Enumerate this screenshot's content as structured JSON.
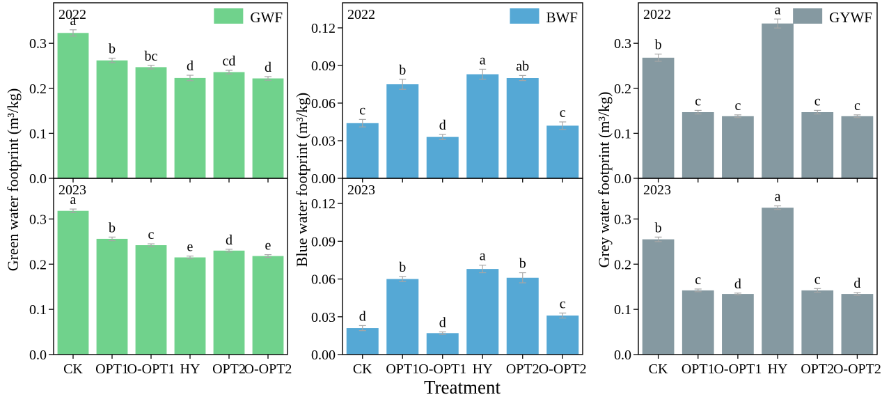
{
  "figure": {
    "xlabel": "Treatment",
    "background": "#ffffff",
    "axis_color": "#000000",
    "error_bar_color": "#a6a6a6",
    "categories": [
      "CK",
      "OPT1",
      "O-OPT1",
      "HY",
      "OPT2",
      "O-OPT2"
    ]
  },
  "chart_data": [
    {
      "type": "bar",
      "name": "green-water-footprint",
      "ylabel": "Green water footprint (m³/kg)",
      "legend": "GWF",
      "legend_position": "top-right",
      "bar_color": "#70d28c",
      "grid": false,
      "categories": [
        "CK",
        "OPT1",
        "O-OPT1",
        "HY",
        "OPT2",
        "O-OPT2"
      ],
      "ylim": [
        0,
        0.39
      ],
      "ytick_values": [
        0.0,
        0.1,
        0.2,
        0.3
      ],
      "ytick_labels": [
        "0.0",
        "0.1",
        "0.2",
        "0.3"
      ],
      "panels": [
        {
          "year": "2022",
          "values": [
            0.323,
            0.262,
            0.247,
            0.223,
            0.236,
            0.222
          ],
          "errors": [
            0.007,
            0.005,
            0.004,
            0.006,
            0.004,
            0.004
          ],
          "letters": [
            "a",
            "b",
            "bc",
            "d",
            "cd",
            "d"
          ]
        },
        {
          "year": "2023",
          "values": [
            0.318,
            0.256,
            0.242,
            0.215,
            0.23,
            0.218
          ],
          "errors": [
            0.004,
            0.004,
            0.003,
            0.003,
            0.003,
            0.003
          ],
          "letters": [
            "a",
            "b",
            "c",
            "e",
            "d",
            "e"
          ]
        }
      ]
    },
    {
      "type": "bar",
      "name": "blue-water-footprint",
      "ylabel": "Blue water footprint (m³/kg)",
      "legend": "BWF",
      "legend_position": "top-right",
      "bar_color": "#55a8d5",
      "grid": false,
      "categories": [
        "CK",
        "OPT1",
        "O-OPT1",
        "HY",
        "OPT2",
        "O-OPT2"
      ],
      "ylim": [
        0,
        0.14
      ],
      "ytick_values": [
        0.0,
        0.03,
        0.06,
        0.09,
        0.12
      ],
      "ytick_labels": [
        "0.00",
        "0.03",
        "0.06",
        "0.09",
        "0.12"
      ],
      "panels": [
        {
          "year": "2022",
          "values": [
            0.044,
            0.075,
            0.033,
            0.083,
            0.08,
            0.042
          ],
          "errors": [
            0.003,
            0.004,
            0.002,
            0.004,
            0.002,
            0.003
          ],
          "letters": [
            "c",
            "b",
            "d",
            "a",
            "ab",
            "c"
          ]
        },
        {
          "year": "2023",
          "values": [
            0.021,
            0.06,
            0.017,
            0.068,
            0.061,
            0.031
          ],
          "errors": [
            0.002,
            0.002,
            0.001,
            0.003,
            0.004,
            0.002
          ],
          "letters": [
            "d",
            "b",
            "d",
            "a",
            "b",
            "c"
          ]
        }
      ]
    },
    {
      "type": "bar",
      "name": "grey-water-footprint",
      "ylabel": "Grey water footprint (m³/kg)",
      "legend": "GYWF",
      "legend_position": "top-right",
      "bar_color": "#8599a1",
      "grid": false,
      "categories": [
        "CK",
        "OPT1",
        "O-OPT1",
        "HY",
        "OPT2",
        "O-OPT2"
      ],
      "ylim": [
        0,
        0.39
      ],
      "ytick_values": [
        0.0,
        0.1,
        0.2,
        0.3
      ],
      "ytick_labels": [
        "0.0",
        "0.1",
        "0.2",
        "0.3"
      ],
      "panels": [
        {
          "year": "2022",
          "values": [
            0.268,
            0.147,
            0.138,
            0.344,
            0.147,
            0.138
          ],
          "errors": [
            0.008,
            0.004,
            0.003,
            0.01,
            0.004,
            0.003
          ],
          "letters": [
            "b",
            "c",
            "c",
            "a",
            "c",
            "c"
          ]
        },
        {
          "year": "2023",
          "values": [
            0.255,
            0.142,
            0.134,
            0.325,
            0.142,
            0.134
          ],
          "errors": [
            0.005,
            0.003,
            0.002,
            0.004,
            0.004,
            0.003
          ],
          "letters": [
            "b",
            "c",
            "d",
            "a",
            "c",
            "d"
          ]
        }
      ]
    }
  ]
}
